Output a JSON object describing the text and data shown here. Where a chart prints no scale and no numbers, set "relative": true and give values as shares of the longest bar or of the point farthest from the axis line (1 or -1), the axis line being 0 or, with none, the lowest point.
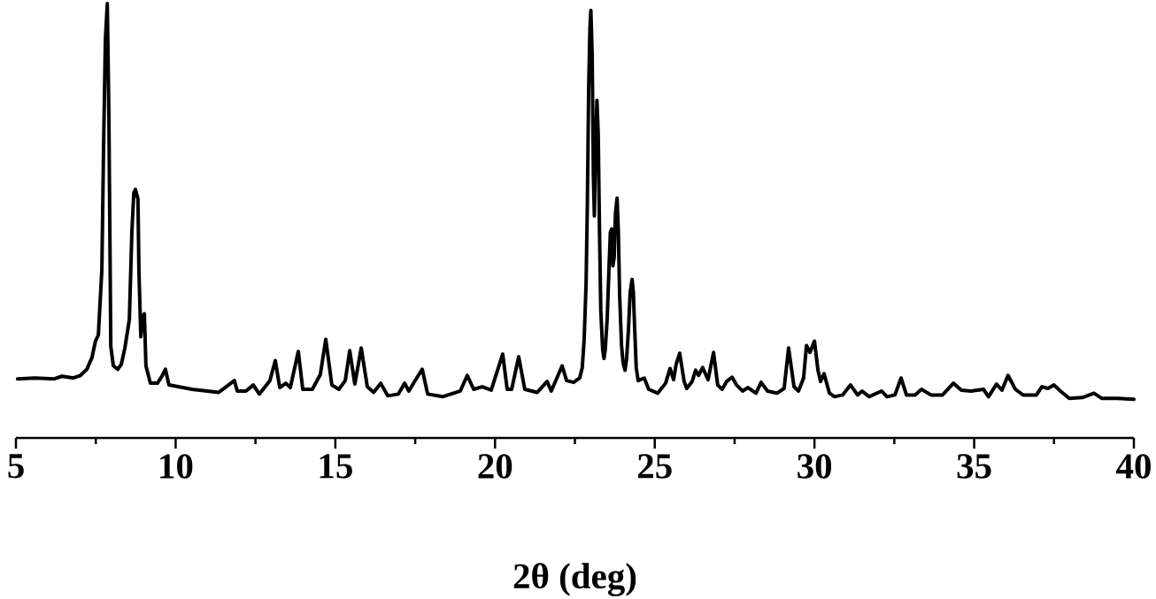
{
  "chart_data": {
    "type": "line",
    "xlabel": "2θ (deg)",
    "relative": true,
    "xlim": [
      5,
      40
    ],
    "xticks": [
      5,
      {
        "value": 7.5,
        "label": null
      },
      10,
      {
        "value": 12.5,
        "label": null
      },
      15,
      {
        "value": 17.5,
        "label": null
      },
      20,
      {
        "value": 22.5,
        "label": null
      },
      25,
      {
        "value": 27.5,
        "label": null
      },
      30,
      {
        "value": 32.5,
        "label": null
      },
      35,
      {
        "value": 37.5,
        "label": null
      },
      40
    ],
    "x": [
      5.05,
      5.6,
      6.2,
      6.44,
      6.8,
      7.02,
      7.22,
      7.38,
      7.49,
      7.58,
      7.69,
      7.74,
      7.8,
      7.86,
      7.91,
      7.94,
      7.97,
      8.05,
      8.19,
      8.3,
      8.41,
      8.55,
      8.63,
      8.69,
      8.74,
      8.82,
      8.85,
      8.91,
      8.96,
      9.02,
      9.07,
      9.21,
      9.43,
      9.57,
      9.68,
      9.79,
      10.51,
      11.35,
      11.84,
      11.93,
      12.2,
      12.43,
      12.62,
      12.95,
      13.12,
      13.26,
      13.45,
      13.59,
      13.84,
      13.98,
      14.28,
      14.53,
      14.7,
      14.89,
      15.11,
      15.31,
      15.45,
      15.61,
      15.81,
      16.0,
      16.2,
      16.42,
      16.64,
      16.97,
      17.17,
      17.3,
      17.53,
      17.72,
      17.89,
      18.36,
      18.91,
      19.13,
      19.33,
      19.6,
      19.88,
      20.24,
      20.38,
      20.52,
      20.74,
      20.93,
      21.32,
      21.63,
      21.76,
      22.1,
      22.24,
      22.46,
      22.65,
      22.73,
      22.79,
      22.85,
      22.89,
      22.93,
      22.97,
      23.0,
      23.04,
      23.08,
      23.11,
      23.15,
      23.19,
      23.23,
      23.27,
      23.31,
      23.37,
      23.41,
      23.45,
      23.51,
      23.57,
      23.61,
      23.65,
      23.69,
      23.73,
      23.77,
      23.82,
      23.86,
      23.9,
      23.96,
      24.01,
      24.07,
      24.12,
      24.18,
      24.23,
      24.29,
      24.33,
      24.37,
      24.42,
      24.48,
      24.67,
      24.81,
      25.09,
      25.34,
      25.48,
      25.59,
      25.67,
      25.78,
      25.92,
      26.0,
      26.17,
      26.28,
      26.37,
      26.5,
      26.67,
      26.84,
      26.97,
      27.11,
      27.25,
      27.42,
      27.56,
      27.75,
      27.92,
      28.17,
      28.33,
      28.53,
      28.83,
      29.05,
      29.19,
      29.36,
      29.5,
      29.66,
      29.75,
      29.86,
      30.0,
      30.11,
      30.19,
      30.3,
      30.47,
      30.63,
      30.88,
      31.13,
      31.35,
      31.49,
      31.71,
      32.1,
      32.27,
      32.52,
      32.71,
      32.88,
      33.15,
      33.35,
      33.65,
      34.01,
      34.35,
      34.6,
      34.9,
      35.29,
      35.45,
      35.7,
      35.87,
      36.06,
      36.29,
      36.53,
      36.95,
      37.12,
      37.31,
      37.5,
      37.7,
      37.98,
      38.39,
      38.75,
      39.0,
      39.5,
      40.0
    ],
    "series": [
      {
        "color": "#000000",
        "values": [
          0.136,
          0.138,
          0.136,
          0.142,
          0.138,
          0.144,
          0.158,
          0.185,
          0.223,
          0.237,
          0.387,
          0.651,
          0.917,
          1.0,
          0.74,
          0.475,
          0.211,
          0.166,
          0.158,
          0.17,
          0.207,
          0.272,
          0.475,
          0.564,
          0.572,
          0.55,
          0.387,
          0.233,
          0.28,
          0.286,
          0.166,
          0.126,
          0.126,
          0.142,
          0.158,
          0.122,
          0.112,
          0.105,
          0.132,
          0.108,
          0.108,
          0.122,
          0.101,
          0.132,
          0.178,
          0.116,
          0.126,
          0.116,
          0.199,
          0.112,
          0.112,
          0.146,
          0.227,
          0.122,
          0.112,
          0.132,
          0.201,
          0.124,
          0.207,
          0.118,
          0.105,
          0.126,
          0.097,
          0.101,
          0.126,
          0.108,
          0.136,
          0.158,
          0.101,
          0.095,
          0.108,
          0.144,
          0.112,
          0.118,
          0.11,
          0.193,
          0.112,
          0.112,
          0.187,
          0.112,
          0.105,
          0.13,
          0.108,
          0.166,
          0.132,
          0.128,
          0.138,
          0.162,
          0.227,
          0.355,
          0.538,
          0.801,
          0.943,
          0.984,
          0.882,
          0.598,
          0.511,
          0.68,
          0.777,
          0.7,
          0.477,
          0.294,
          0.203,
          0.183,
          0.203,
          0.274,
          0.396,
          0.473,
          0.481,
          0.396,
          0.416,
          0.517,
          0.552,
          0.477,
          0.329,
          0.213,
          0.172,
          0.156,
          0.183,
          0.254,
          0.335,
          0.365,
          0.335,
          0.254,
          0.162,
          0.132,
          0.138,
          0.112,
          0.103,
          0.126,
          0.16,
          0.134,
          0.17,
          0.195,
          0.13,
          0.114,
          0.13,
          0.156,
          0.144,
          0.162,
          0.134,
          0.197,
          0.122,
          0.112,
          0.13,
          0.14,
          0.122,
          0.108,
          0.116,
          0.103,
          0.128,
          0.108,
          0.103,
          0.114,
          0.207,
          0.118,
          0.108,
          0.138,
          0.213,
          0.197,
          0.223,
          0.156,
          0.13,
          0.148,
          0.103,
          0.095,
          0.099,
          0.122,
          0.099,
          0.108,
          0.095,
          0.108,
          0.095,
          0.099,
          0.138,
          0.099,
          0.099,
          0.112,
          0.099,
          0.099,
          0.126,
          0.11,
          0.108,
          0.112,
          0.095,
          0.124,
          0.11,
          0.144,
          0.112,
          0.099,
          0.099,
          0.118,
          0.114,
          0.122,
          0.108,
          0.091,
          0.093,
          0.103,
          0.091,
          0.091,
          0.089
        ]
      }
    ]
  }
}
